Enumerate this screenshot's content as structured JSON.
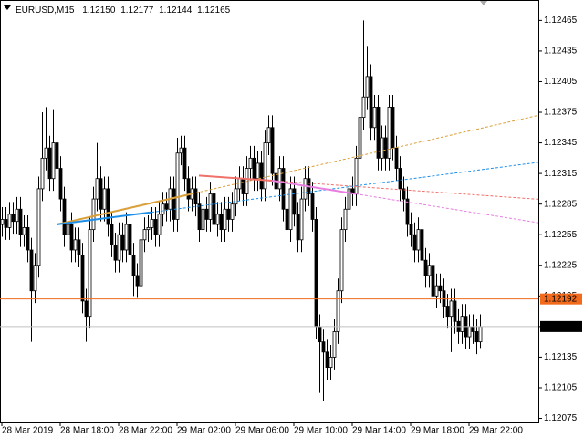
{
  "chart_data": {
    "type": "candlestick",
    "symbol": "EURUSD,M15",
    "ohlc_labels": [
      "1.12150",
      "1.12177",
      "1.12144",
      "1.12165"
    ],
    "up_color": "#ffffff",
    "down_color": "#000000",
    "outline_color": "#000000",
    "xlim": [
      -0.5,
      147
    ],
    "xticks": [
      {
        "value": 0,
        "label": "28 Mar 2019"
      },
      {
        "value": 16,
        "label": "28 Mar 18:00"
      },
      {
        "value": 32,
        "label": "28 Mar 22:00"
      },
      {
        "value": 48,
        "label": "29 Mar 02:00"
      },
      {
        "value": 64,
        "label": "29 Mar 06:00"
      },
      {
        "value": 80,
        "label": "29 Mar 10:00"
      },
      {
        "value": 96,
        "label": "29 Mar 14:00"
      },
      {
        "value": 112,
        "label": "29 Mar 18:00"
      },
      {
        "value": 128,
        "label": "29 Mar 22:00"
      }
    ],
    "ylim": [
      1.12071,
      1.12485
    ],
    "yticks": [
      1.12465,
      1.12435,
      1.12405,
      1.12375,
      1.12345,
      1.12315,
      1.12285,
      1.12255,
      1.12225,
      1.12195,
      1.12165,
      1.12135,
      1.12105,
      1.12075
    ],
    "open": [
      1.12265,
      1.1227,
      1.12262,
      1.12275,
      1.12268,
      1.1228,
      1.12255,
      1.12262,
      1.1224,
      1.122,
      1.12225,
      1.123,
      1.1233,
      1.1234,
      1.1231,
      1.12345,
      1.1232,
      1.1229,
      1.12255,
      1.12265,
      1.1224,
      1.1225,
      1.12235,
      1.1219,
      1.12175,
      1.1226,
      1.1229,
      1.1231,
      1.1228,
      1.123,
      1.12265,
      1.12245,
      1.1223,
      1.12255,
      1.1224,
      1.12265,
      1.12235,
      1.12215,
      1.12205,
      1.1225,
      1.1226,
      1.12262,
      1.1227,
      1.12255,
      1.12275,
      1.12285,
      1.1228,
      1.123,
      1.1227,
      1.12335,
      1.1234,
      1.1231,
      1.1229,
      1.123,
      1.12285,
      1.1226,
      1.1228,
      1.1227,
      1.12295,
      1.12265,
      1.12275,
      1.1226,
      1.1228,
      1.1227,
      1.12285,
      1.123,
      1.1231,
      1.12295,
      1.1232,
      1.1233,
      1.1231,
      1.12325,
      1.123,
      1.12345,
      1.1236,
      1.12315,
      1.123,
      1.1232,
      1.1228,
      1.1226,
      1.123,
      1.12275,
      1.1225,
      1.1229,
      1.1231,
      1.12295,
      1.1227,
      1.12165,
      1.1215,
      1.1214,
      1.12125,
      1.12135,
      1.1216,
      1.122,
      1.1226,
      1.1228,
      1.123,
      1.12295,
      1.1233,
      1.1237,
      1.1239,
      1.1241,
      1.1236,
      1.1238,
      1.1233,
      1.1235,
      1.1233,
      1.1238,
      1.1234,
      1.1232,
      1.123,
      1.1229,
      1.12265,
      1.12255,
      1.1224,
      1.1226,
      1.1223,
      1.12215,
      1.12225,
      1.12195,
      1.12205,
      1.122,
      1.12185,
      1.12175,
      1.1219,
      1.1217,
      1.1216,
      1.12175,
      1.12155,
      1.12165,
      1.1216,
      1.1215
    ],
    "high": [
      1.12282,
      1.12282,
      1.12287,
      1.12287,
      1.12292,
      1.12292,
      1.12274,
      1.12274,
      1.12252,
      1.12237,
      1.12312,
      1.12375,
      1.1238,
      1.12352,
      1.12378,
      1.12357,
      1.12332,
      1.12302,
      1.12277,
      1.12277,
      1.12262,
      1.12262,
      1.12247,
      1.12202,
      1.12272,
      1.12302,
      1.12345,
      1.12322,
      1.12312,
      1.12312,
      1.12277,
      1.12257,
      1.12267,
      1.12267,
      1.12277,
      1.12277,
      1.12247,
      1.12227,
      1.12262,
      1.12272,
      1.12274,
      1.12282,
      1.12282,
      1.12287,
      1.12297,
      1.12297,
      1.12312,
      1.12312,
      1.1235,
      1.12352,
      1.12352,
      1.12322,
      1.12312,
      1.12312,
      1.12297,
      1.12292,
      1.12292,
      1.12307,
      1.12307,
      1.12287,
      1.12287,
      1.12292,
      1.12292,
      1.12297,
      1.12312,
      1.12322,
      1.12322,
      1.12332,
      1.12342,
      1.12342,
      1.12337,
      1.12337,
      1.12357,
      1.12372,
      1.12372,
      1.124,
      1.12332,
      1.12332,
      1.12292,
      1.12312,
      1.12312,
      1.12287,
      1.12302,
      1.12322,
      1.12322,
      1.12307,
      1.12282,
      1.12177,
      1.12162,
      1.12152,
      1.12147,
      1.12172,
      1.12212,
      1.12272,
      1.12292,
      1.12312,
      1.12312,
      1.12342,
      1.12382,
      1.12465,
      1.1244,
      1.12422,
      1.12392,
      1.12392,
      1.12362,
      1.12362,
      1.12392,
      1.12392,
      1.12352,
      1.12332,
      1.12312,
      1.12302,
      1.12277,
      1.12267,
      1.12272,
      1.12272,
      1.12242,
      1.12237,
      1.12237,
      1.12217,
      1.12217,
      1.12212,
      1.12197,
      1.12202,
      1.12202,
      1.12182,
      1.12187,
      1.12187,
      1.12177,
      1.12177,
      1.12172,
      1.12177
    ],
    "low": [
      1.12253,
      1.1225,
      1.1225,
      1.12256,
      1.12256,
      1.12243,
      1.12243,
      1.12228,
      1.1215,
      1.12188,
      1.12213,
      1.12288,
      1.12318,
      1.12298,
      1.12298,
      1.12308,
      1.12278,
      1.12243,
      1.12243,
      1.12228,
      1.12228,
      1.12223,
      1.12178,
      1.1215,
      1.12163,
      1.12248,
      1.12278,
      1.12268,
      1.12268,
      1.12253,
      1.12233,
      1.12218,
      1.12218,
      1.12228,
      1.12228,
      1.12223,
      1.12195,
      1.12193,
      1.12193,
      1.12238,
      1.12248,
      1.1225,
      1.12243,
      1.12243,
      1.12263,
      1.12268,
      1.12268,
      1.12258,
      1.12258,
      1.12323,
      1.12298,
      1.12278,
      1.12278,
      1.12273,
      1.12248,
      1.12248,
      1.12258,
      1.12258,
      1.12253,
      1.12253,
      1.12248,
      1.12248,
      1.12258,
      1.12258,
      1.12273,
      1.12288,
      1.12283,
      1.12283,
      1.12308,
      1.12298,
      1.12298,
      1.12288,
      1.12288,
      1.12333,
      1.12303,
      1.12288,
      1.12288,
      1.12268,
      1.12248,
      1.12248,
      1.12263,
      1.12238,
      1.12238,
      1.12278,
      1.12283,
      1.12258,
      1.12153,
      1.121,
      1.12092,
      1.12113,
      1.12113,
      1.12123,
      1.12148,
      1.12188,
      1.12248,
      1.12268,
      1.12283,
      1.12283,
      1.12318,
      1.12358,
      1.12378,
      1.12348,
      1.12348,
      1.12318,
      1.12318,
      1.12318,
      1.12318,
      1.12328,
      1.12308,
      1.12288,
      1.12278,
      1.12253,
      1.12243,
      1.12228,
      1.12228,
      1.12218,
      1.12203,
      1.12203,
      1.12183,
      1.12183,
      1.12188,
      1.12173,
      1.12163,
      1.1214,
      1.12158,
      1.12148,
      1.12148,
      1.12143,
      1.12143,
      1.12148,
      1.12138,
      1.12144
    ],
    "close": [
      1.1227,
      1.12262,
      1.12275,
      1.12268,
      1.1228,
      1.12255,
      1.12262,
      1.1224,
      1.122,
      1.12225,
      1.123,
      1.1233,
      1.1234,
      1.1231,
      1.12345,
      1.1232,
      1.1229,
      1.12255,
      1.12265,
      1.1224,
      1.1225,
      1.12235,
      1.1219,
      1.12175,
      1.1226,
      1.1229,
      1.1231,
      1.1228,
      1.123,
      1.12265,
      1.12245,
      1.1223,
      1.12255,
      1.1224,
      1.12265,
      1.12235,
      1.12215,
      1.12205,
      1.1225,
      1.1226,
      1.12262,
      1.1227,
      1.12255,
      1.12275,
      1.12285,
      1.1228,
      1.123,
      1.1227,
      1.12335,
      1.1234,
      1.1231,
      1.1229,
      1.123,
      1.12285,
      1.1226,
      1.1228,
      1.1227,
      1.12295,
      1.12265,
      1.12275,
      1.1226,
      1.1228,
      1.1227,
      1.12285,
      1.123,
      1.1231,
      1.12295,
      1.1232,
      1.1233,
      1.1231,
      1.12325,
      1.123,
      1.12345,
      1.1236,
      1.12315,
      1.123,
      1.1232,
      1.1228,
      1.1226,
      1.123,
      1.12275,
      1.1225,
      1.1229,
      1.1231,
      1.12295,
      1.1227,
      1.12165,
      1.1215,
      1.1214,
      1.12125,
      1.12135,
      1.1216,
      1.122,
      1.1226,
      1.1228,
      1.123,
      1.12295,
      1.1233,
      1.1237,
      1.1239,
      1.1241,
      1.1236,
      1.1238,
      1.1233,
      1.1235,
      1.1233,
      1.1238,
      1.1234,
      1.1232,
      1.123,
      1.1229,
      1.12265,
      1.12255,
      1.1224,
      1.1226,
      1.1223,
      1.12215,
      1.12225,
      1.12195,
      1.12205,
      1.122,
      1.12185,
      1.12175,
      1.1219,
      1.1217,
      1.1216,
      1.12175,
      1.12155,
      1.12165,
      1.1216,
      1.1215,
      1.12165
    ],
    "price_lines": [
      {
        "value": 1.12192,
        "color": "#f26b1d",
        "label_bg": "#f26b1d",
        "label_color": "#ffffff"
      },
      {
        "value": 1.12165,
        "color": "#c0c0c0",
        "label_bg": "#000000",
        "label_color": "#ffffff"
      }
    ],
    "trend_lines": [
      {
        "color": "#daa03a",
        "points": [
          [
            15,
            1.12265
          ],
          [
            52,
            1.12295
          ]
        ]
      },
      {
        "color": "#1e8fe8",
        "points": [
          [
            15,
            1.12265
          ],
          [
            41,
            1.12277
          ]
        ]
      },
      {
        "color": "#f0706a",
        "points": [
          [
            54,
            1.12313
          ],
          [
            74,
            1.12308
          ]
        ]
      },
      {
        "color": "#e77ee0",
        "points": [
          [
            74,
            1.12308
          ],
          [
            97,
            1.12295
          ]
        ]
      }
    ]
  }
}
